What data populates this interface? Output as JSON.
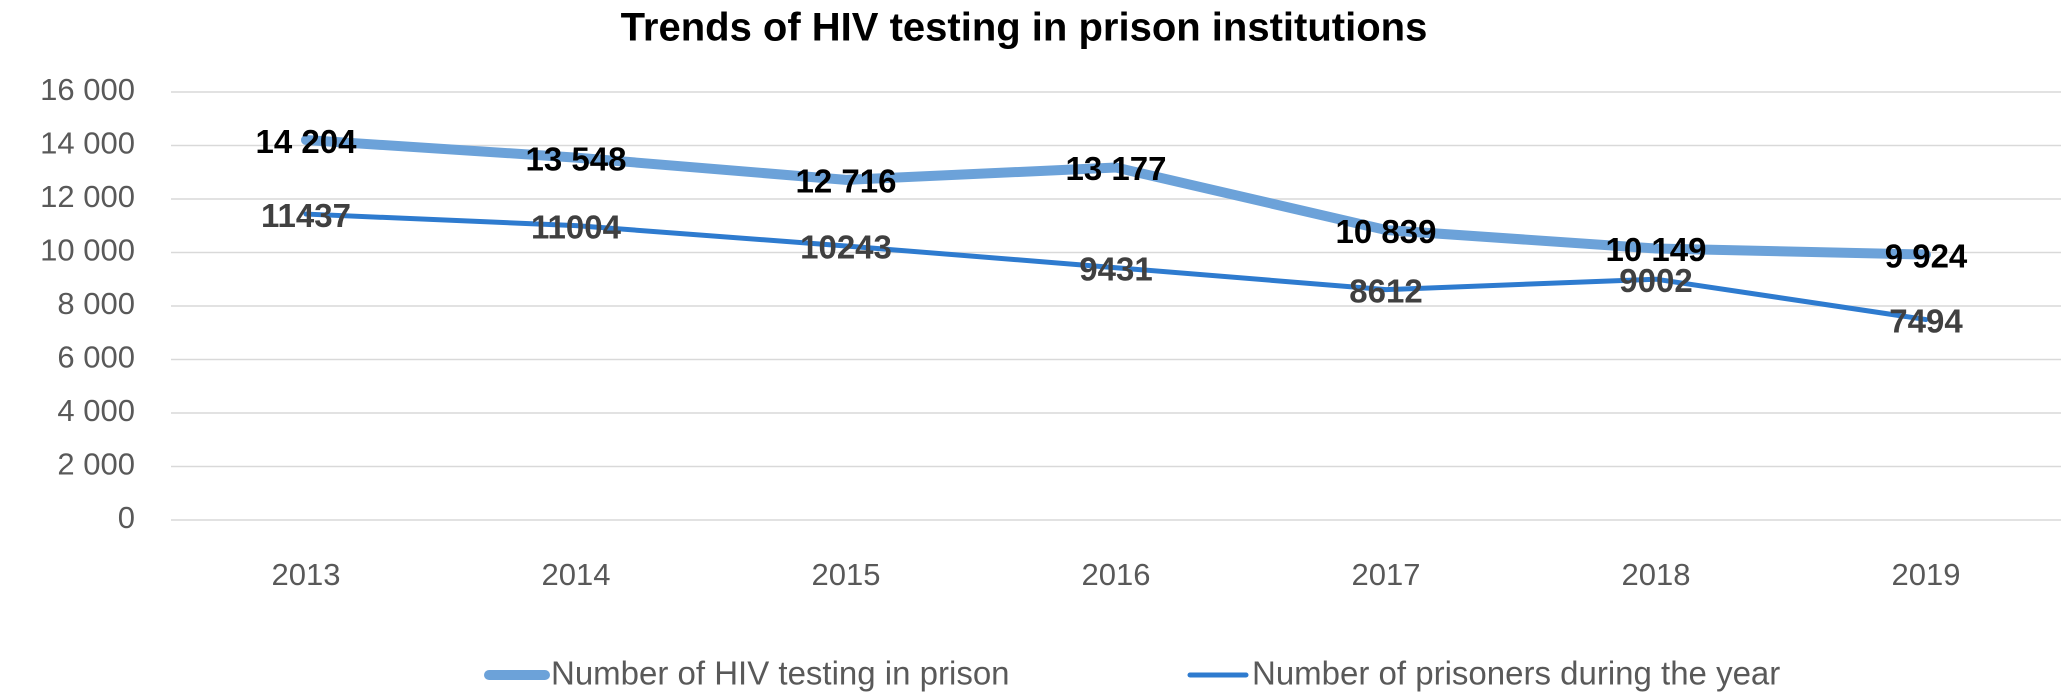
{
  "chart_data": {
    "type": "line",
    "title": "Trends of HIV testing in prison institutions",
    "categories": [
      "2013",
      "2014",
      "2015",
      "2016",
      "2017",
      "2018",
      "2019"
    ],
    "series": [
      {
        "name": "Number of HIV testing in prison",
        "color": "#6ca2d9",
        "values": [
          14204,
          13548,
          12716,
          13177,
          10839,
          10149,
          9924
        ],
        "value_labels": [
          "14 204",
          "13 548",
          "12 716",
          "13 177",
          "10 839",
          "10 149",
          "9 924"
        ]
      },
      {
        "name": "Number of prisoners during the year",
        "color": "#2e7bcf",
        "values": [
          11437,
          11004,
          10243,
          9431,
          8612,
          9002,
          7494
        ]
      }
    ],
    "ylim": [
      0,
      16000
    ],
    "yticks": [
      0,
      {
        "value": 2000,
        "label": "2 000"
      },
      {
        "value": 4000,
        "label": "4 000"
      },
      {
        "value": 6000,
        "label": "6 000"
      },
      {
        "value": 8000,
        "label": "8 000"
      },
      {
        "value": 10000,
        "label": "10 000"
      },
      {
        "value": 12000,
        "label": "12 000"
      },
      {
        "value": 14000,
        "label": "14 000"
      },
      {
        "value": 16000,
        "label": "16 000"
      }
    ],
    "grid": true,
    "legend": "bottom"
  }
}
